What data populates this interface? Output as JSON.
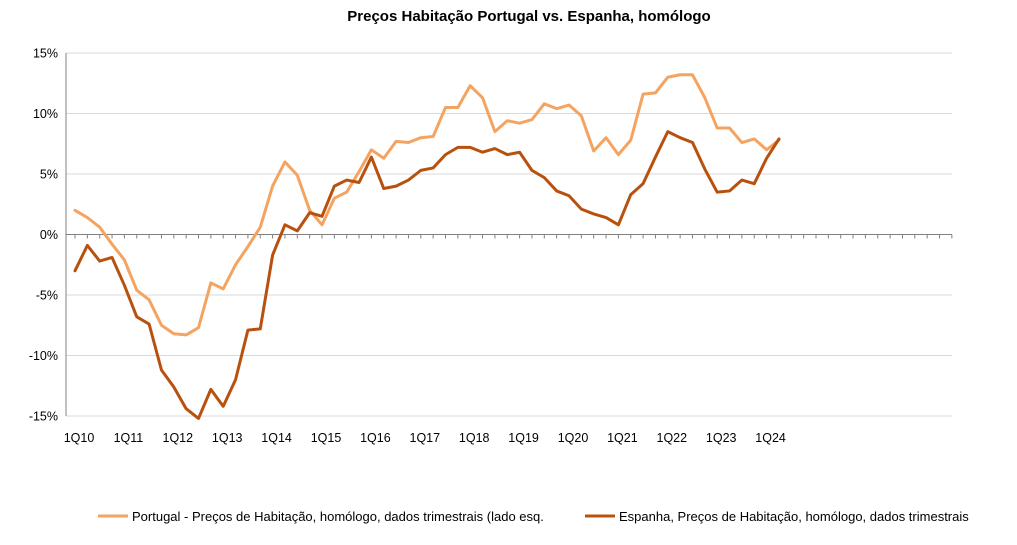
{
  "chart_data": {
    "type": "line",
    "title": "Preços Habitação Portugal vs. Espanha, homólogo",
    "xlabel": "",
    "ylabel": "",
    "ylim": [
      -15,
      15
    ],
    "yticks": [
      15,
      10,
      5,
      0,
      -5,
      -10,
      -15
    ],
    "ytick_labels": [
      "15%",
      "10%",
      "5%",
      "0%",
      "-5%",
      "-10%",
      "-15%"
    ],
    "x_tick_labels": [
      "1Q10",
      "1Q11",
      "1Q12",
      "1Q13",
      "1Q14",
      "1Q15",
      "1Q16",
      "1Q17",
      "1Q18",
      "1Q19",
      "1Q20",
      "1Q21",
      "1Q22",
      "1Q23",
      "1Q24"
    ],
    "grid": true,
    "legend_position": "bottom",
    "series": [
      {
        "name": "Portugal - Preços de Habitação, homólogo, dados trimestrais (lado esq.",
        "color": "#F4A460",
        "values": [
          2.0,
          1.4,
          0.6,
          -0.8,
          -2.1,
          -4.6,
          -5.4,
          -7.5,
          -8.2,
          -8.3,
          -7.7,
          -4.0,
          -4.5,
          -2.5,
          -1.0,
          0.6,
          4.0,
          6.0,
          4.9,
          2.0,
          0.8,
          3.0,
          3.5,
          5.2,
          7.0,
          6.3,
          7.7,
          7.6,
          8.0,
          8.1,
          10.5,
          10.5,
          12.3,
          11.3,
          8.5,
          9.4,
          9.2,
          9.5,
          10.8,
          10.4,
          10.7,
          9.8,
          6.9,
          8.0,
          6.6,
          7.8,
          11.6,
          11.7,
          13.0,
          13.2,
          13.2,
          11.3,
          8.8,
          8.8,
          7.6,
          7.9,
          7.0,
          7.8
        ]
      },
      {
        "name": "Espanha, Preços de Habitação, homólogo, dados trimestrais",
        "color": "#B8510E",
        "values": [
          -3.0,
          -0.9,
          -2.2,
          -1.9,
          -4.2,
          -6.8,
          -7.4,
          -11.2,
          -12.6,
          -14.4,
          -15.2,
          -12.8,
          -14.2,
          -12.0,
          -7.9,
          -7.8,
          -1.7,
          0.8,
          0.3,
          1.8,
          1.5,
          4.0,
          4.5,
          4.3,
          6.4,
          3.8,
          4.0,
          4.5,
          5.3,
          5.5,
          6.6,
          7.2,
          7.2,
          6.8,
          7.1,
          6.6,
          6.8,
          5.3,
          4.7,
          3.6,
          3.2,
          2.1,
          1.7,
          1.4,
          0.8,
          3.3,
          4.2,
          6.4,
          8.5,
          8.0,
          7.6,
          5.4,
          3.5,
          3.6,
          4.5,
          4.2,
          6.3,
          7.9
        ]
      }
    ]
  }
}
